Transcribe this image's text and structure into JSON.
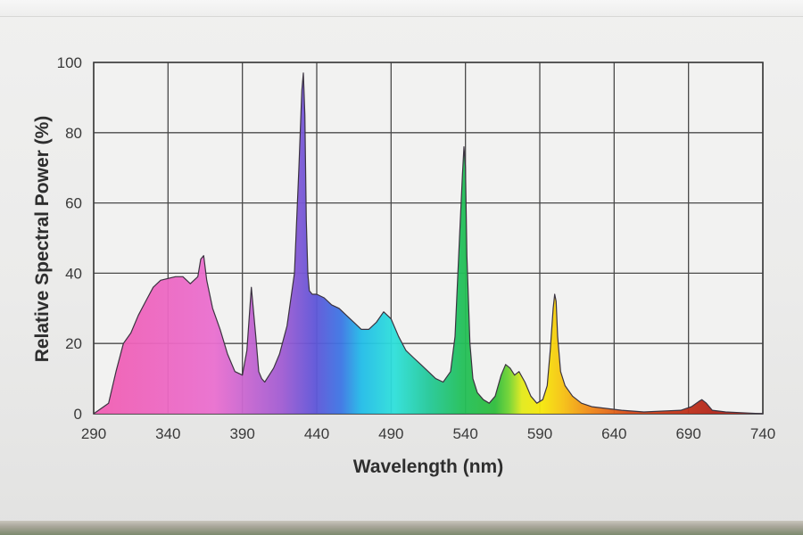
{
  "chart_data": {
    "type": "area",
    "title": "",
    "xlabel": "Wavelength (nm)",
    "ylabel": "Relative Spectral Power (%)",
    "xlim": [
      290,
      740
    ],
    "ylim": [
      0,
      100
    ],
    "x_ticks": [
      290,
      340,
      390,
      440,
      490,
      540,
      590,
      640,
      690,
      740
    ],
    "y_ticks": [
      0,
      20,
      40,
      60,
      80,
      100
    ],
    "grid": true,
    "fill": "visible-spectrum gradient (magenta to violet to blue to cyan to green to yellow to orange to red)",
    "series": [
      {
        "x": [
          290,
          300,
          305,
          310,
          315,
          320,
          325,
          330,
          335,
          340,
          345,
          350,
          355,
          360,
          362,
          364,
          366,
          368,
          370,
          375,
          380,
          385,
          390,
          393,
          396,
          399,
          401,
          403,
          405,
          408,
          411,
          415,
          420,
          425,
          428,
          430,
          431,
          432,
          433,
          434,
          435,
          437,
          440,
          445,
          450,
          455,
          460,
          465,
          470,
          475,
          480,
          485,
          490,
          495,
          500,
          505,
          510,
          515,
          520,
          525,
          530,
          533,
          536,
          538,
          539,
          540,
          541,
          543,
          545,
          548,
          552,
          556,
          560,
          564,
          567,
          570,
          573,
          576,
          580,
          584,
          588,
          592,
          595,
          597,
          599,
          600,
          601,
          602,
          604,
          607,
          612,
          618,
          625,
          635,
          645,
          660,
          675,
          685,
          692,
          697,
          699,
          702,
          706,
          715,
          730,
          740
        ],
        "y": [
          0,
          3,
          12,
          20,
          23,
          28,
          32,
          36,
          38,
          38.5,
          39,
          39,
          37,
          39,
          44,
          45,
          38,
          34,
          30,
          24,
          17,
          12,
          11,
          18,
          36,
          22,
          12,
          10,
          9,
          11,
          13,
          17,
          25,
          40,
          70,
          92,
          97,
          85,
          55,
          40,
          35,
          34,
          34,
          33,
          31,
          30,
          28,
          26,
          24,
          24,
          26,
          29,
          27,
          22,
          18,
          16,
          14,
          12,
          10,
          9,
          12,
          22,
          50,
          68,
          76,
          70,
          45,
          20,
          10,
          6,
          4,
          3,
          5,
          11,
          14,
          13,
          11,
          12,
          9,
          5,
          3,
          4,
          8,
          18,
          30,
          34,
          32,
          22,
          12,
          8,
          5,
          3,
          2,
          1.5,
          1,
          0.5,
          0.8,
          1,
          2,
          3.5,
          4,
          3,
          1,
          0.5,
          0.2,
          0
        ]
      }
    ]
  }
}
